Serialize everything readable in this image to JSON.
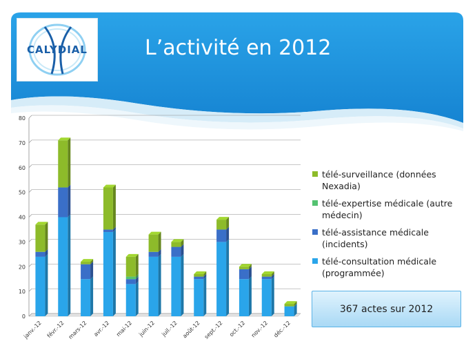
{
  "slide": {
    "title": "L’activité en 2012",
    "logo_text": "CALYDIAL",
    "summary": "367 actes sur 2012"
  },
  "colors": {
    "header_blue": "#1a9ae3",
    "surveillance": "#8dbb2a",
    "expertise": "#54c271",
    "assistance": "#3a6fc8",
    "consultation": "#2aa5ea"
  },
  "chart_data": {
    "type": "bar",
    "stacked": true,
    "categories": [
      "janv.-12",
      "févr.-12",
      "mars-12",
      "avr.-12",
      "mai-12",
      "juin-12",
      "juil.-12",
      "août-12",
      "sept.-12",
      "oct.-12",
      "nov.-12",
      "déc.-12"
    ],
    "series": [
      {
        "name": "télé-consultation médicale (programmée)",
        "color": "#2aa5ea",
        "values": [
          24,
          40,
          15,
          34,
          13,
          24,
          24,
          15,
          30,
          15,
          15,
          4
        ]
      },
      {
        "name": "télé-assistance médicale (incidents)",
        "color": "#3a6fc8",
        "values": [
          2,
          12,
          6,
          1,
          2,
          2,
          4,
          1,
          5,
          4,
          1,
          0
        ]
      },
      {
        "name": "télé-expertise médicale (autre médecin)",
        "color": "#54c271",
        "values": [
          0,
          0,
          0,
          0,
          1,
          0,
          0,
          0,
          0,
          0,
          0,
          0
        ]
      },
      {
        "name": "télé-surveillance (données Nexadia)",
        "color": "#8dbb2a",
        "values": [
          11,
          19,
          1,
          17,
          8,
          7,
          2,
          1,
          4,
          1,
          1,
          1
        ]
      }
    ],
    "y_ticks": [
      0,
      10,
      20,
      30,
      40,
      50,
      60,
      70,
      80
    ],
    "ylim": [
      0,
      80
    ],
    "grid": true,
    "legend_position": "right",
    "legend_order": [
      "télé-surveillance (données Nexadia)",
      "télé-expertise médicale (autre médecin)",
      "télé-assistance médicale (incidents)",
      "télé-consultation médicale (programmée)"
    ]
  }
}
